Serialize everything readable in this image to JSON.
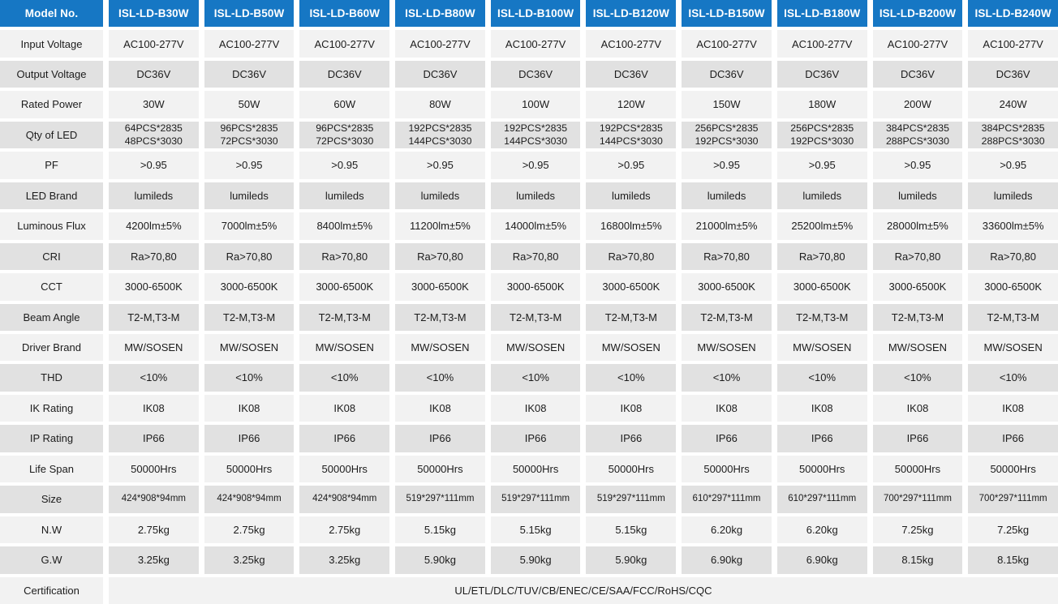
{
  "colors": {
    "header_bg": "#1677C4",
    "header_text": "#FFFFFF",
    "row_light": "#F2F2F2",
    "row_dark": "#E1E1E1",
    "cell_text": "#1C1C1C",
    "gap": "#FFFFFF"
  },
  "header": {
    "label": "Model No.",
    "models": [
      "ISL-LD-B30W",
      "ISL-LD-B50W",
      "ISL-LD-B60W",
      "ISL-LD-B80W",
      "ISL-LD-B100W",
      "ISL-LD-B120W",
      "ISL-LD-B150W",
      "ISL-LD-B180W",
      "ISL-LD-B200W",
      "ISL-LD-B240W"
    ]
  },
  "rows": [
    {
      "label": "Input Voltage",
      "values": [
        "AC100-277V",
        "AC100-277V",
        "AC100-277V",
        "AC100-277V",
        "AC100-277V",
        "AC100-277V",
        "AC100-277V",
        "AC100-277V",
        "AC100-277V",
        "AC100-277V"
      ]
    },
    {
      "label": "Output Voltage",
      "values": [
        "DC36V",
        "DC36V",
        "DC36V",
        "DC36V",
        "DC36V",
        "DC36V",
        "DC36V",
        "DC36V",
        "DC36V",
        "DC36V"
      ]
    },
    {
      "label": "Rated Power",
      "values": [
        "30W",
        "50W",
        "60W",
        "80W",
        "100W",
        "120W",
        "150W",
        "180W",
        "200W",
        "240W"
      ]
    },
    {
      "label": "Qty of LED",
      "values": [
        "64PCS*2835\n48PCS*3030",
        "96PCS*2835\n72PCS*3030",
        "96PCS*2835\n72PCS*3030",
        "192PCS*2835\n144PCS*3030",
        "192PCS*2835\n144PCS*3030",
        "192PCS*2835\n144PCS*3030",
        "256PCS*2835\n192PCS*3030",
        "256PCS*2835\n192PCS*3030",
        "384PCS*2835\n288PCS*3030",
        "384PCS*2835\n288PCS*3030"
      ]
    },
    {
      "label": "PF",
      "values": [
        ">0.95",
        ">0.95",
        ">0.95",
        ">0.95",
        ">0.95",
        ">0.95",
        ">0.95",
        ">0.95",
        ">0.95",
        ">0.95"
      ]
    },
    {
      "label": "LED Brand",
      "values": [
        "lumileds",
        "lumileds",
        "lumileds",
        "lumileds",
        "lumileds",
        "lumileds",
        "lumileds",
        "lumileds",
        "lumileds",
        "lumileds"
      ]
    },
    {
      "label": "Luminous Flux",
      "values": [
        "4200lm±5%",
        "7000lm±5%",
        "8400lm±5%",
        "11200lm±5%",
        "14000lm±5%",
        "16800lm±5%",
        "21000lm±5%",
        "25200lm±5%",
        "28000lm±5%",
        "33600lm±5%"
      ]
    },
    {
      "label": "CRI",
      "values": [
        "Ra>70,80",
        "Ra>70,80",
        "Ra>70,80",
        "Ra>70,80",
        "Ra>70,80",
        "Ra>70,80",
        "Ra>70,80",
        "Ra>70,80",
        "Ra>70,80",
        "Ra>70,80"
      ]
    },
    {
      "label": "CCT",
      "values": [
        "3000-6500K",
        "3000-6500K",
        "3000-6500K",
        "3000-6500K",
        "3000-6500K",
        "3000-6500K",
        "3000-6500K",
        "3000-6500K",
        "3000-6500K",
        "3000-6500K"
      ]
    },
    {
      "label": "Beam Angle",
      "values": [
        "T2-M,T3-M",
        "T2-M,T3-M",
        "T2-M,T3-M",
        "T2-M,T3-M",
        "T2-M,T3-M",
        "T2-M,T3-M",
        "T2-M,T3-M",
        "T2-M,T3-M",
        "T2-M,T3-M",
        "T2-M,T3-M"
      ]
    },
    {
      "label": "Driver Brand",
      "values": [
        "MW/SOSEN",
        "MW/SOSEN",
        "MW/SOSEN",
        "MW/SOSEN",
        "MW/SOSEN",
        "MW/SOSEN",
        "MW/SOSEN",
        "MW/SOSEN",
        "MW/SOSEN",
        "MW/SOSEN"
      ]
    },
    {
      "label": "THD",
      "values": [
        "<10%",
        "<10%",
        "<10%",
        "<10%",
        "<10%",
        "<10%",
        "<10%",
        "<10%",
        "<10%",
        "<10%"
      ]
    },
    {
      "label": "IK Rating",
      "values": [
        "IK08",
        "IK08",
        "IK08",
        "IK08",
        "IK08",
        "IK08",
        "IK08",
        "IK08",
        "IK08",
        "IK08"
      ]
    },
    {
      "label": "IP Rating",
      "values": [
        "IP66",
        "IP66",
        "IP66",
        "IP66",
        "IP66",
        "IP66",
        "IP66",
        "IP66",
        "IP66",
        "IP66"
      ]
    },
    {
      "label": "Life Span",
      "values": [
        "50000Hrs",
        "50000Hrs",
        "50000Hrs",
        "50000Hrs",
        "50000Hrs",
        "50000Hrs",
        "50000Hrs",
        "50000Hrs",
        "50000Hrs",
        "50000Hrs"
      ]
    },
    {
      "label": "Size",
      "values": [
        "424*908*94mm",
        "424*908*94mm",
        "424*908*94mm",
        "519*297*111mm",
        "519*297*111mm",
        "519*297*111mm",
        "610*297*111mm",
        "610*297*111mm",
        "700*297*111mm",
        "700*297*111mm"
      ]
    },
    {
      "label": "N.W",
      "values": [
        "2.75kg",
        "2.75kg",
        "2.75kg",
        "5.15kg",
        "5.15kg",
        "5.15kg",
        "6.20kg",
        "6.20kg",
        "7.25kg",
        "7.25kg"
      ]
    },
    {
      "label": "G.W",
      "values": [
        "3.25kg",
        "3.25kg",
        "3.25kg",
        "5.90kg",
        "5.90kg",
        "5.90kg",
        "6.90kg",
        "6.90kg",
        "8.15kg",
        "8.15kg"
      ]
    }
  ],
  "certification": {
    "label": "Certification",
    "value": "UL/ETL/DLC/TUV/CB/ENEC/CE/SAA/FCC/RoHS/CQC"
  }
}
